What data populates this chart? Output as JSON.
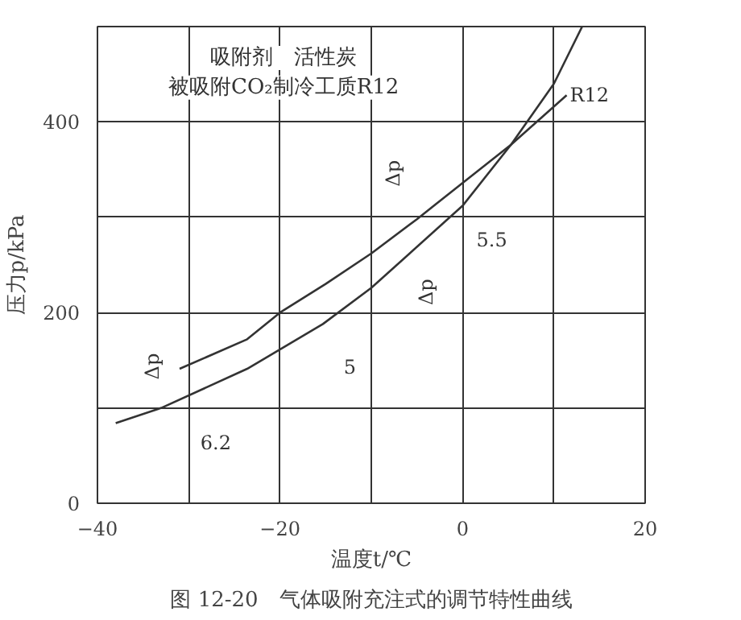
{
  "chart_data": {
    "type": "line",
    "title": "图 12-20　气体吸附充注式的调节特性曲线",
    "xlabel": "温度t/℃",
    "ylabel": "压力p/kPa",
    "xlim": [
      -40,
      20
    ],
    "ylim": [
      0,
      500
    ],
    "xticks": [
      {
        "value": -40,
        "label": "−40"
      },
      {
        "value": -30,
        "label": null
      },
      {
        "value": -20,
        "label": "−20"
      },
      {
        "value": -10,
        "label": null
      },
      0,
      {
        "value": 10,
        "label": null
      },
      20
    ],
    "yticks": [
      0,
      {
        "value": 100,
        "label": null
      },
      200,
      {
        "value": 300,
        "label": null
      },
      400
    ],
    "grid": true,
    "marker": "none",
    "line_style": "solid",
    "series": [
      {
        "name": "R12",
        "color": "#333333",
        "x": [
          -31,
          -23.6,
          -20,
          -15,
          -10,
          -5,
          0,
          5.3,
          11.4
        ],
        "values": [
          141,
          172,
          200,
          230,
          262,
          298,
          336,
          376,
          428
        ]
      },
      {
        "color": "#333333",
        "x": [
          -38,
          -33,
          -23.6,
          -15.3,
          -10,
          0,
          5.3,
          10,
          13.1
        ],
        "values": [
          84,
          100,
          141,
          188,
          226,
          312,
          376,
          440,
          500
        ]
      }
    ],
    "annotations": [
      "吸附剂　活性炭",
      "被吸附CO₂制冷工质R12",
      "Δp",
      "6.2",
      "5",
      "Δp",
      "Δp",
      "5.5"
    ]
  }
}
